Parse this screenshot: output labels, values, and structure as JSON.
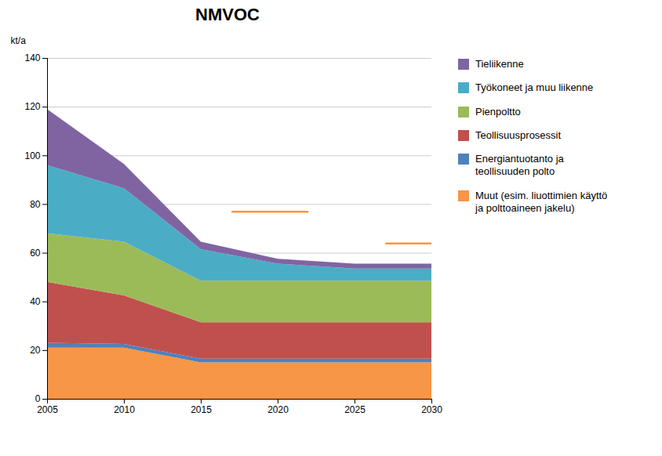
{
  "chart_data": {
    "type": "area",
    "stacked": true,
    "title": "NMVOC",
    "ylabel": "kt/a",
    "x": [
      2005,
      2010,
      2015,
      2020,
      2025,
      2030
    ],
    "series": [
      {
        "name": "Muut (esim. liuottimien käyttö\nja polttoaineen jakelu)",
        "color": "#F79646",
        "values": [
          21,
          21,
          15,
          15,
          15,
          15
        ]
      },
      {
        "name": "Energiantuotanto ja\nteollisuuden polto",
        "color": "#4F81BD",
        "values": [
          2,
          1.5,
          1.5,
          1.5,
          1.5,
          1.5
        ]
      },
      {
        "name": "Teollisuusprosessit",
        "color": "#C0504D",
        "values": [
          25,
          20,
          15,
          15,
          15,
          15
        ]
      },
      {
        "name": "Pienpoltto",
        "color": "#9BBB59",
        "values": [
          20,
          22,
          17,
          17,
          17,
          17
        ]
      },
      {
        "name": "Työkoneet ja muu liikenne",
        "color": "#4BACC6",
        "values": [
          28,
          22,
          13,
          7,
          5,
          5
        ]
      },
      {
        "name": "Tieliikenne",
        "color": "#8064A2",
        "values": [
          23,
          10,
          3,
          2,
          2,
          2
        ]
      }
    ],
    "reference_lines": [
      {
        "x_start": 2017,
        "x_end": 2022,
        "y": 77,
        "color": "#F79646"
      },
      {
        "x_start": 2027,
        "x_end": 2030,
        "y": 64,
        "color": "#F79646"
      }
    ],
    "xlim": [
      2005,
      2030
    ],
    "ylim": [
      0,
      140
    ],
    "xticks": [
      2005,
      2010,
      2015,
      2020,
      2025,
      2030
    ],
    "yticks": [
      0,
      20,
      40,
      60,
      80,
      100,
      120,
      140
    ],
    "grid": true,
    "legend": "right"
  }
}
